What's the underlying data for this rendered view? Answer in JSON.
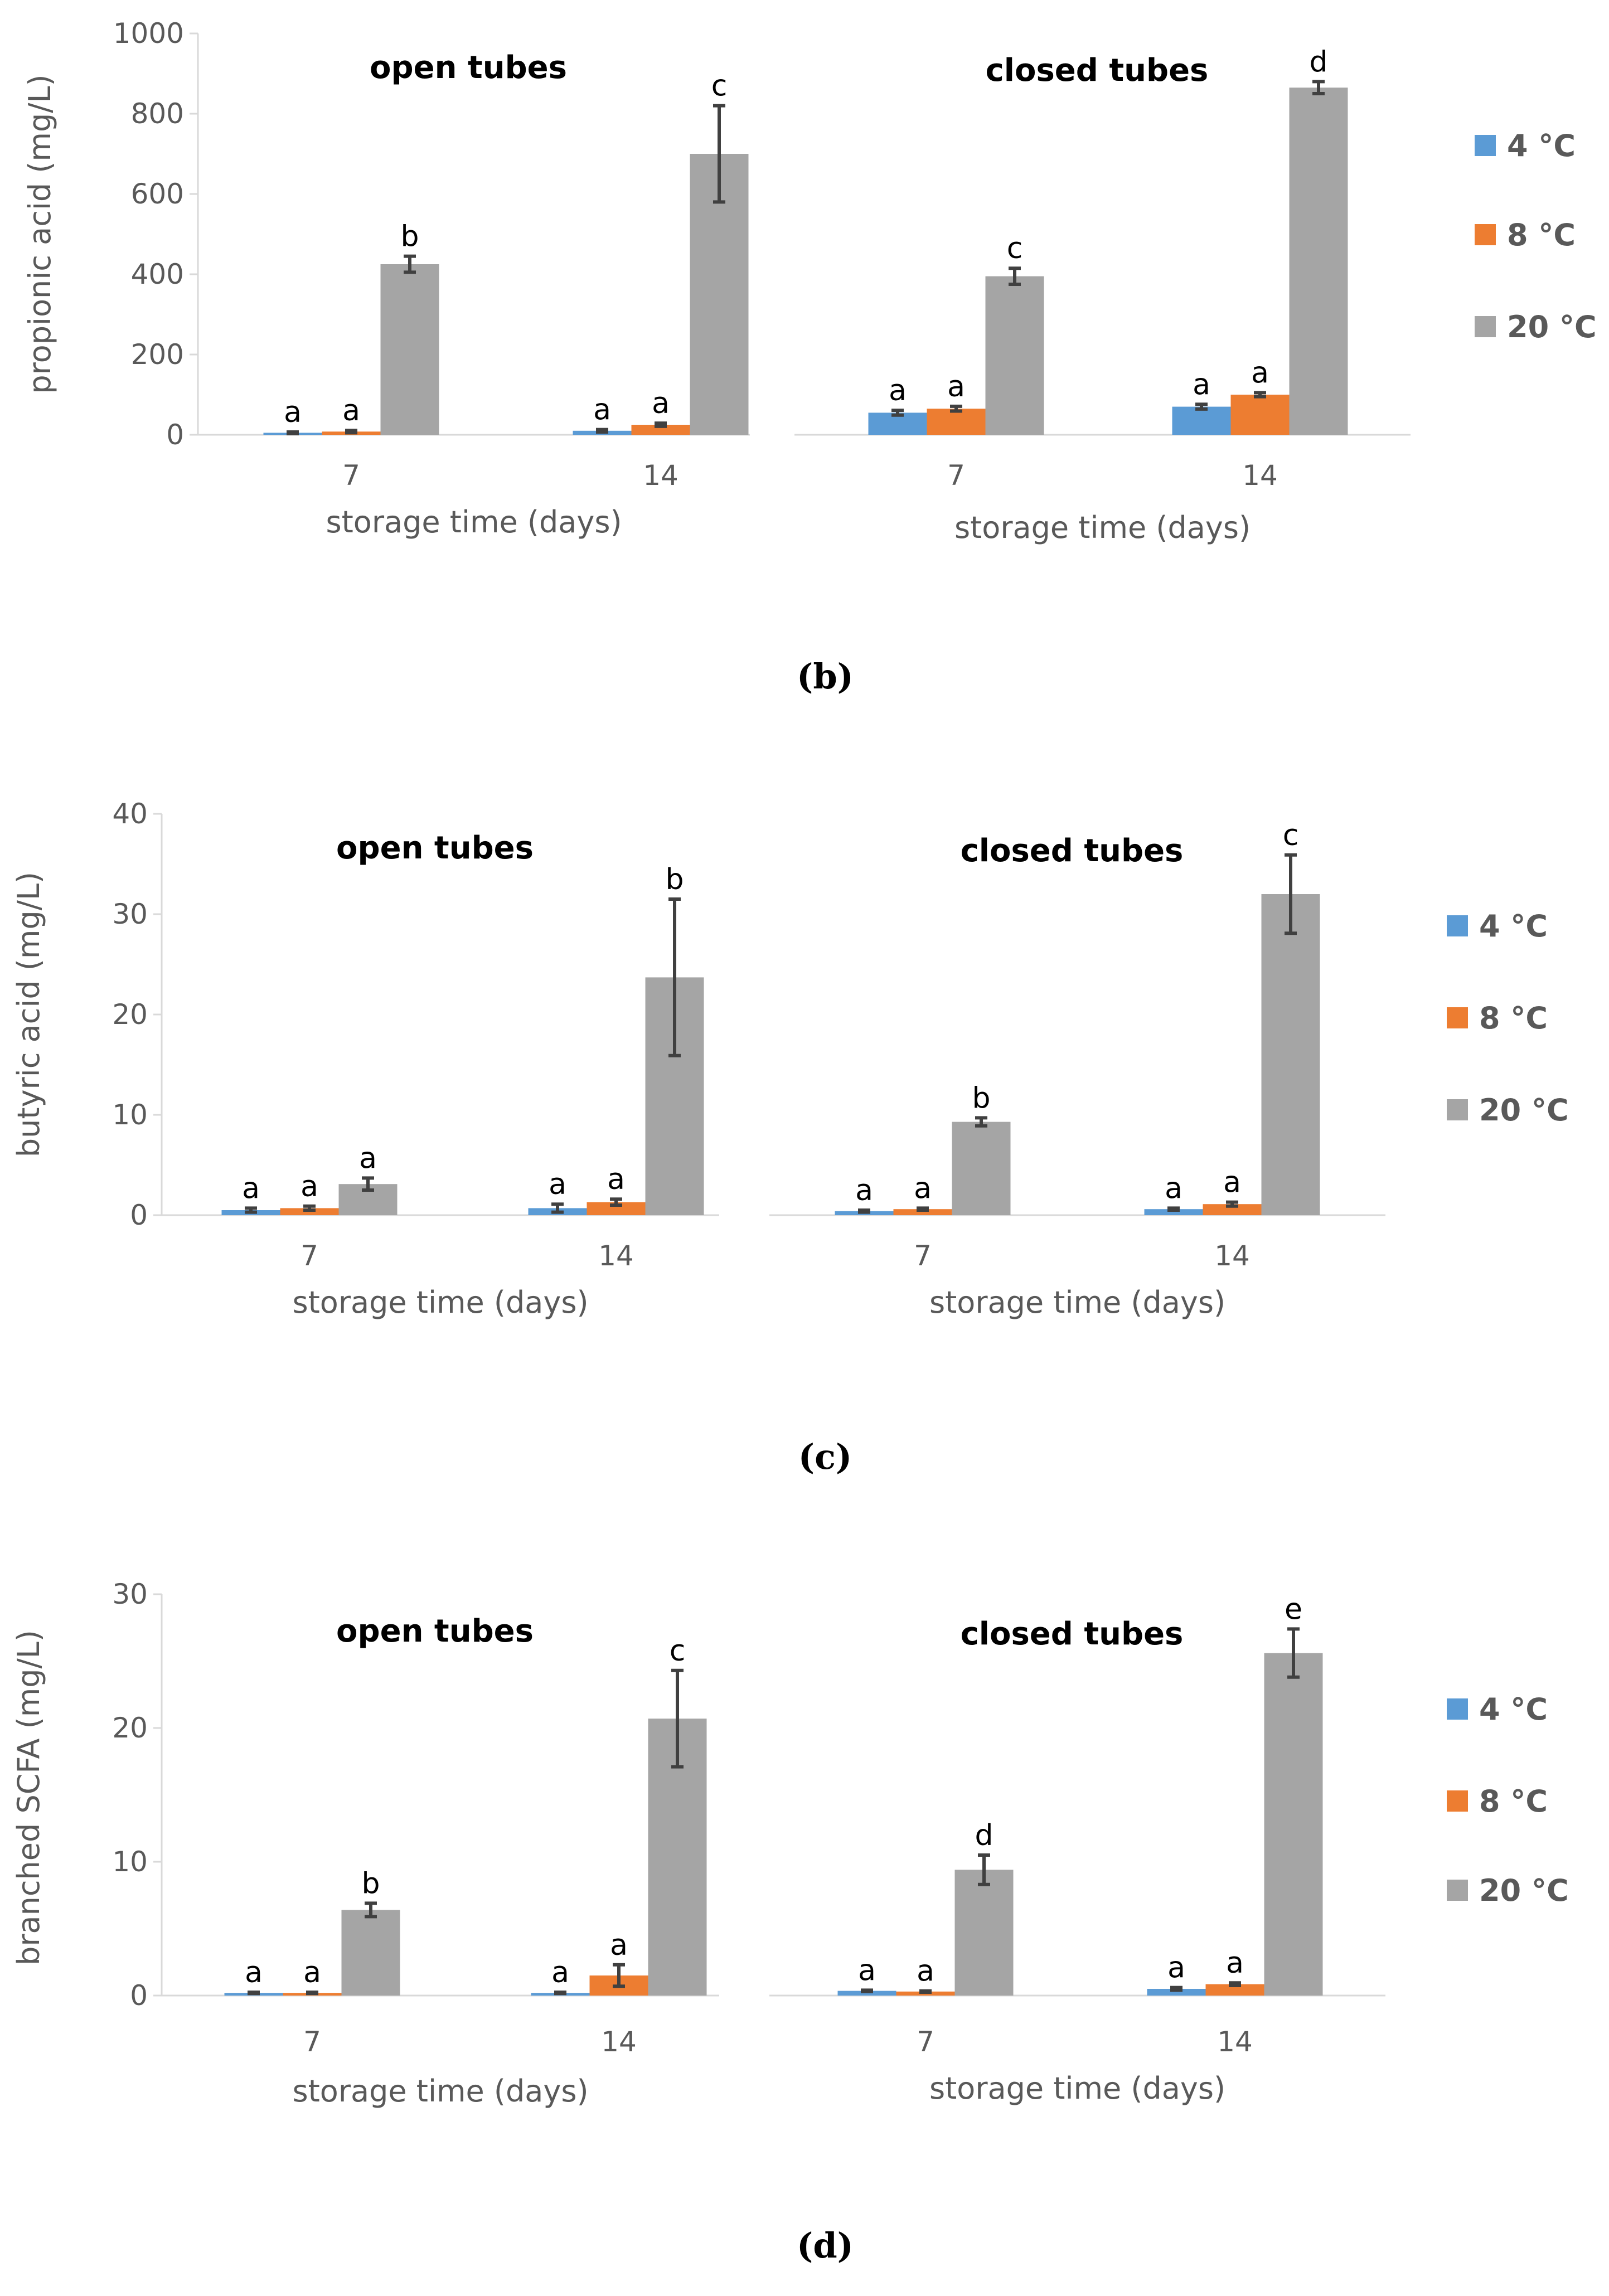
{
  "colors": {
    "4C": "#5b9bd5",
    "8C": "#ed7d31",
    "20C": "#a5a5a5",
    "error_bar": "#404040",
    "axis": "#d9d9d9",
    "text": "#595959"
  },
  "legend": [
    {
      "key": "4C",
      "label": "4 °C"
    },
    {
      "key": "8C",
      "label": "8 °C"
    },
    {
      "key": "20C",
      "label": "20 °C"
    }
  ],
  "chart_data": [
    {
      "type": "bar",
      "caption": "(b)",
      "ylabel": "propionic acid (mg/L)",
      "ylim": [
        0,
        1000
      ],
      "yticks": [
        "0",
        "200",
        "400",
        "600",
        "800",
        "1000"
      ],
      "xlabel": "storage time (days)",
      "legend_position": "right",
      "panels": [
        {
          "title": "open tubes",
          "categories": [
            "7",
            "14"
          ],
          "series": [
            {
              "name": "4 °C",
              "values": [
                5,
                10
              ],
              "errors": [
                2,
                3
              ],
              "labels": [
                "a",
                "a"
              ]
            },
            {
              "name": "8 °C",
              "values": [
                8,
                25
              ],
              "errors": [
                3,
                4
              ],
              "labels": [
                "a",
                "a"
              ]
            },
            {
              "name": "20 °C",
              "values": [
                425,
                700
              ],
              "errors": [
                20,
                120
              ],
              "labels": [
                "b",
                "c"
              ]
            }
          ]
        },
        {
          "title": "closed tubes",
          "categories": [
            "7",
            "14"
          ],
          "series": [
            {
              "name": "4 °C",
              "values": [
                55,
                70
              ],
              "errors": [
                6,
                6
              ],
              "labels": [
                "a",
                "a"
              ]
            },
            {
              "name": "8 °C",
              "values": [
                65,
                100
              ],
              "errors": [
                6,
                5
              ],
              "labels": [
                "a",
                "a"
              ]
            },
            {
              "name": "20 °C",
              "values": [
                395,
                865
              ],
              "errors": [
                20,
                15
              ],
              "labels": [
                "c",
                "d"
              ]
            }
          ]
        }
      ]
    },
    {
      "type": "bar",
      "caption": "(c)",
      "ylabel": "butyric acid (mg/L)",
      "ylim": [
        0,
        40
      ],
      "yticks": [
        "0",
        "10",
        "20",
        "30",
        "40"
      ],
      "xlabel": "storage time (days)",
      "legend_position": "right",
      "panels": [
        {
          "title": "open tubes",
          "categories": [
            "7",
            "14"
          ],
          "series": [
            {
              "name": "4 °C",
              "values": [
                0.5,
                0.7
              ],
              "errors": [
                0.2,
                0.4
              ],
              "labels": [
                "a",
                "a"
              ]
            },
            {
              "name": "8 °C",
              "values": [
                0.7,
                1.3
              ],
              "errors": [
                0.2,
                0.3
              ],
              "labels": [
                "a",
                "a"
              ]
            },
            {
              "name": "20 °C",
              "values": [
                3.1,
                23.7
              ],
              "errors": [
                0.6,
                7.8
              ],
              "labels": [
                "a",
                "b"
              ]
            }
          ]
        },
        {
          "title": "closed tubes",
          "categories": [
            "7",
            "14"
          ],
          "series": [
            {
              "name": "4 °C",
              "values": [
                0.4,
                0.6
              ],
              "errors": [
                0.1,
                0.1
              ],
              "labels": [
                "a",
                "a"
              ]
            },
            {
              "name": "8 °C",
              "values": [
                0.6,
                1.1
              ],
              "errors": [
                0.1,
                0.2
              ],
              "labels": [
                "a",
                "a"
              ]
            },
            {
              "name": "20 °C",
              "values": [
                9.3,
                32.0
              ],
              "errors": [
                0.4,
                3.9
              ],
              "labels": [
                "b",
                "c"
              ]
            }
          ]
        }
      ]
    },
    {
      "type": "bar",
      "caption": "(d)",
      "ylabel": "branched SCFA (mg/L)",
      "ylim": [
        0,
        30
      ],
      "yticks": [
        "0",
        "10",
        "20",
        "30"
      ],
      "xlabel": "storage time (days)",
      "legend_position": "right",
      "panels": [
        {
          "title": "open tubes",
          "categories": [
            "7",
            "14"
          ],
          "series": [
            {
              "name": "4 °C",
              "values": [
                0.2,
                0.2
              ],
              "errors": [
                0.05,
                0.05
              ],
              "labels": [
                "a",
                "a"
              ]
            },
            {
              "name": "8 °C",
              "values": [
                0.2,
                1.5
              ],
              "errors": [
                0.05,
                0.8
              ],
              "labels": [
                "a",
                "a"
              ]
            },
            {
              "name": "20 °C",
              "values": [
                6.4,
                20.7
              ],
              "errors": [
                0.5,
                3.6
              ],
              "labels": [
                "b",
                "c"
              ]
            }
          ]
        },
        {
          "title": "closed tubes",
          "categories": [
            "7",
            "14"
          ],
          "series": [
            {
              "name": "4 °C",
              "values": [
                0.35,
                0.5
              ],
              "errors": [
                0.05,
                0.1
              ],
              "labels": [
                "a",
                "a"
              ]
            },
            {
              "name": "8 °C",
              "values": [
                0.3,
                0.85
              ],
              "errors": [
                0.05,
                0.1
              ],
              "labels": [
                "a",
                "a"
              ]
            },
            {
              "name": "20 °C",
              "values": [
                9.4,
                25.6
              ],
              "errors": [
                1.1,
                1.8
              ],
              "labels": [
                "d",
                "e"
              ]
            }
          ]
        }
      ]
    }
  ]
}
